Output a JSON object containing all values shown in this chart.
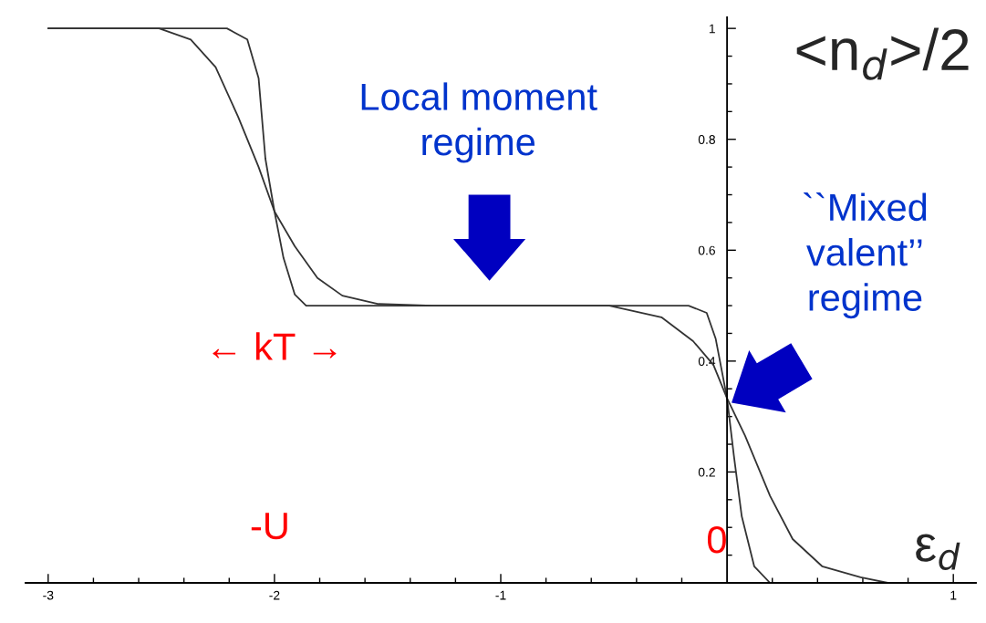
{
  "chart_data": {
    "type": "line",
    "xlabel": "ε$_{d}$",
    "ylabel": "<n$_{d}$>/2",
    "series": [
      {
        "color": "#333333",
        "x": [
          -3.0,
          -2.4,
          -2.21,
          -2.12,
          -2.07,
          -2.04,
          -2.0,
          -1.96,
          -1.91,
          -1.86,
          -1.5,
          -1.0,
          -0.5,
          -0.17,
          -0.09,
          -0.05,
          0.0,
          0.03,
          0.065,
          0.12,
          0.19,
          0.5,
          1.0
        ],
        "values": [
          1.0,
          1.0,
          1.0,
          0.98,
          0.91,
          0.765,
          0.67,
          0.586,
          0.52,
          0.5,
          0.5,
          0.5,
          0.5,
          0.5,
          0.487,
          0.44,
          0.333,
          0.23,
          0.12,
          0.03,
          0.0,
          0.0,
          0.0
        ]
      },
      {
        "color": "#333333",
        "x": [
          -3.0,
          -2.51,
          -2.37,
          -2.26,
          -2.16,
          -2.07,
          -2.0,
          -1.91,
          -1.81,
          -1.7,
          -1.54,
          -1.3,
          -0.8,
          -0.52,
          -0.29,
          -0.15,
          -0.06,
          0.0,
          0.08,
          0.19,
          0.29,
          0.42,
          0.59,
          0.71,
          1.0
        ],
        "values": [
          1.0,
          1.0,
          0.98,
          0.93,
          0.84,
          0.75,
          0.67,
          0.607,
          0.55,
          0.518,
          0.503,
          0.5,
          0.5,
          0.5,
          0.479,
          0.436,
          0.393,
          0.333,
          0.265,
          0.157,
          0.079,
          0.03,
          0.01,
          0.0,
          0.0
        ]
      }
    ],
    "xlim": [
      -3.1,
      1.1
    ],
    "ylim": [
      0,
      1.02
    ],
    "xticks": [
      -3,
      {
        "value": -2.8,
        "label": null
      },
      {
        "value": -2.6,
        "label": null
      },
      {
        "value": -2.4,
        "label": null
      },
      {
        "value": -2.2,
        "label": null
      },
      -2,
      {
        "value": -1.8,
        "label": null
      },
      {
        "value": -1.6,
        "label": null
      },
      {
        "value": -1.4,
        "label": null
      },
      {
        "value": -1.2,
        "label": null
      },
      -1,
      {
        "value": -0.8,
        "label": null
      },
      {
        "value": -0.6,
        "label": null
      },
      {
        "value": -0.4,
        "label": null
      },
      {
        "value": -0.2,
        "label": null
      },
      {
        "value": 0.2,
        "label": null
      },
      {
        "value": 0.4,
        "label": null
      },
      {
        "value": 0.6,
        "label": null
      },
      {
        "value": 0.8,
        "label": null
      },
      1
    ],
    "yticks": [
      {
        "value": 0.05,
        "label": null
      },
      {
        "value": 0.1,
        "label": null
      },
      {
        "value": 0.15,
        "label": null
      },
      0.2,
      {
        "value": 0.25,
        "label": null
      },
      {
        "value": 0.3,
        "label": null
      },
      {
        "value": 0.35,
        "label": null
      },
      0.4,
      {
        "value": 0.45,
        "label": null
      },
      {
        "value": 0.5,
        "label": null
      },
      {
        "value": 0.55,
        "label": null
      },
      0.6,
      {
        "value": 0.65,
        "label": null
      },
      {
        "value": 0.7,
        "label": null
      },
      {
        "value": 0.75,
        "label": null
      },
      0.8,
      {
        "value": 0.85,
        "label": null
      },
      {
        "value": 0.9,
        "label": null
      },
      {
        "value": 0.95,
        "label": null
      },
      1
    ],
    "annotations": [
      "Local moment\nregime",
      "``Mixed\nvalent’’\nregime",
      "← kT →",
      "-U",
      "0"
    ],
    "grid": false,
    "legend": false
  }
}
